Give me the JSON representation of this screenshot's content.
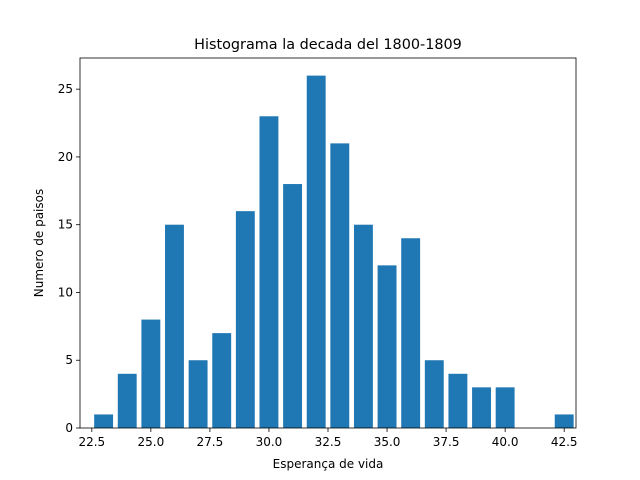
{
  "chart_data": {
    "type": "bar",
    "title": "Histograma la decada del 1800-1809",
    "xlabel": "Esperança de vida",
    "ylabel": "Numero de paisos",
    "bar_color": "#1f77b4",
    "bin_centers": [
      23.0,
      24.0,
      25.0,
      26.0,
      27.0,
      28.0,
      29.0,
      30.0,
      31.0,
      32.0,
      33.0,
      34.0,
      35.0,
      36.0,
      37.0,
      38.0,
      39.0,
      40.0,
      42.5
    ],
    "values": [
      1,
      4,
      8,
      15,
      5,
      7,
      16,
      23,
      18,
      26,
      21,
      15,
      12,
      14,
      5,
      4,
      3,
      3,
      1
    ],
    "bar_width": 0.8,
    "xlim": [
      22.0,
      43.0
    ],
    "ylim": [
      0,
      27.3
    ],
    "x_ticks": [
      22.5,
      25.0,
      27.5,
      30.0,
      32.5,
      35.0,
      37.5,
      40.0,
      42.5
    ],
    "x_tick_labels": [
      "22.5",
      "25.0",
      "27.5",
      "30.0",
      "32.5",
      "35.0",
      "37.5",
      "40.0",
      "42.5"
    ],
    "y_ticks": [
      0,
      5,
      10,
      15,
      20,
      25
    ],
    "y_tick_labels": [
      "0",
      "5",
      "10",
      "15",
      "20",
      "25"
    ],
    "grid": false,
    "legend": "none"
  }
}
